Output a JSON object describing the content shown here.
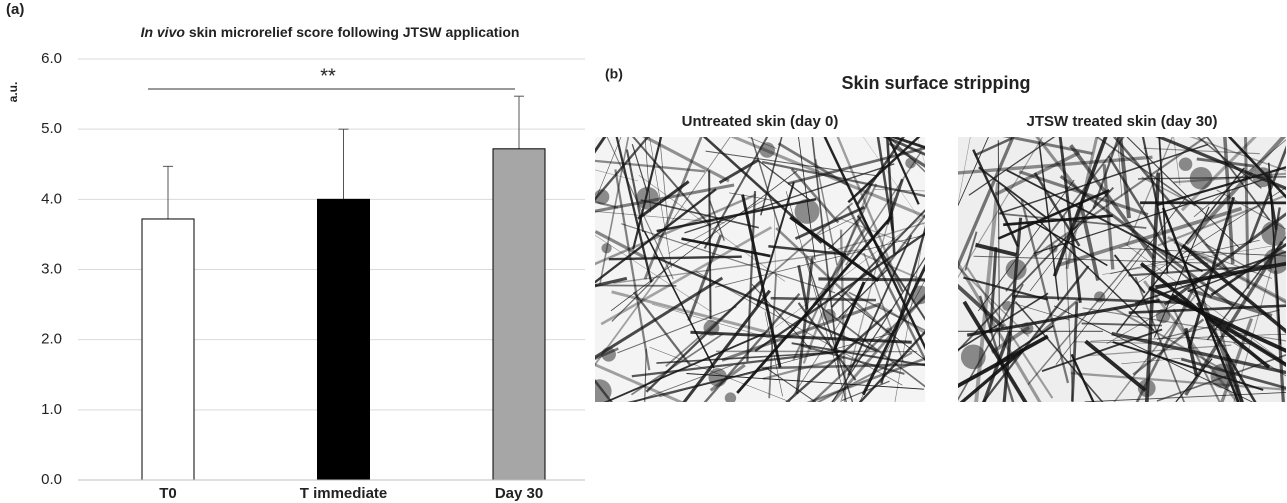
{
  "panel_a_label": "(a)",
  "chart_data": {
    "type": "bar",
    "title_italic": "In vivo",
    "title": "skin microrelief score following  JTSW application",
    "y_label": "a.u.",
    "categories": [
      "T0",
      "T immediate",
      "Day 30"
    ],
    "values": [
      3.72,
      4.0,
      4.72
    ],
    "errors": [
      0.75,
      1.0,
      0.75
    ],
    "colors": [
      "#ffffff",
      "#000000",
      "#a6a6a6"
    ],
    "ylim": [
      0,
      6
    ],
    "yticks": [
      {
        "value": 0,
        "label": "0.0"
      },
      {
        "value": 1,
        "label": "1.0"
      },
      {
        "value": 2,
        "label": "2.0"
      },
      {
        "value": 3,
        "label": "3.0"
      },
      {
        "value": 4,
        "label": "4.0"
      },
      {
        "value": 5,
        "label": "5.0"
      },
      {
        "value": 6,
        "label": "6.0"
      }
    ],
    "grid": true,
    "annotation": "**"
  },
  "panel_b": {
    "label": "(b)",
    "title": "Skin surface stripping",
    "images": [
      {
        "caption": "Untreated skin (day 0)"
      },
      {
        "caption": "JTSW treated skin (day 30)"
      }
    ]
  }
}
